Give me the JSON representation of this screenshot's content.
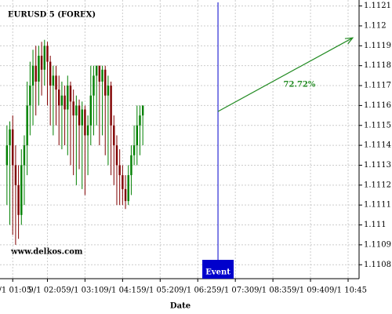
{
  "chart_data": {
    "type": "candlestick",
    "title": "EURUSD 5 (FOREX)",
    "watermark": "www.delkos.com",
    "x_label": "Date",
    "x": [
      55,
      60,
      65,
      70,
      75,
      80,
      85,
      90,
      95,
      100,
      105,
      110,
      115,
      120,
      125,
      130,
      135,
      140,
      145,
      150,
      155,
      160,
      165,
      170,
      175,
      180,
      185,
      190,
      195,
      200,
      205,
      210,
      215,
      220,
      225,
      230,
      235,
      240,
      245,
      250,
      255,
      260,
      265,
      270,
      275,
      280,
      285,
      290
    ],
    "open": [
      1.1113,
      1.1114,
      1.11148,
      1.1113,
      1.1112,
      1.11105,
      1.1113,
      1.1114,
      1.1116,
      1.1117,
      1.1118,
      1.11172,
      1.11185,
      1.11178,
      1.1119,
      1.11182,
      1.1117,
      1.11175,
      1.11168,
      1.1116,
      1.11165,
      1.11158,
      1.1117,
      1.11162,
      1.11155,
      1.1116,
      1.1115,
      1.11158,
      1.11145,
      1.1115,
      1.11165,
      1.11175,
      1.1118,
      1.11172,
      1.11178,
      1.11165,
      1.1117,
      1.1115,
      1.1114,
      1.1113,
      1.11125,
      1.11118,
      1.11112,
      1.11125,
      1.11135,
      1.1114,
      1.1115,
      1.11155
    ],
    "high": [
      1.1115,
      1.11152,
      1.11155,
      1.1114,
      1.1113,
      1.11138,
      1.11145,
      1.11172,
      1.11182,
      1.11188,
      1.1119,
      1.1119,
      1.11192,
      1.11193,
      1.11192,
      1.11185,
      1.1118,
      1.1118,
      1.11175,
      1.11172,
      1.1117,
      1.11175,
      1.11172,
      1.11168,
      1.11165,
      1.11163,
      1.11162,
      1.1116,
      1.11155,
      1.1118,
      1.1118,
      1.1118,
      1.1118,
      1.1118,
      1.1118,
      1.11175,
      1.11172,
      1.11155,
      1.11145,
      1.11138,
      1.1113,
      1.11125,
      1.1113,
      1.1114,
      1.1115,
      1.1116,
      1.1116,
      1.1116
    ],
    "low": [
      1.1111,
      1.111,
      1.11095,
      1.1109,
      1.11093,
      1.111,
      1.1111,
      1.11125,
      1.11145,
      1.1115,
      1.11155,
      1.1116,
      1.11165,
      1.1117,
      1.1116,
      1.1115,
      1.11145,
      1.1115,
      1.1114,
      1.11138,
      1.1114,
      1.11135,
      1.1113,
      1.11125,
      1.1112,
      1.11128,
      1.11118,
      1.11115,
      1.11125,
      1.1114,
      1.11145,
      1.1115,
      1.1114,
      1.11145,
      1.11135,
      1.1113,
      1.11125,
      1.1112,
      1.1111,
      1.1111,
      1.1111,
      1.11108,
      1.1111,
      1.11115,
      1.1113,
      1.1113,
      1.11135,
      1.1114
    ],
    "close": [
      1.1114,
      1.11148,
      1.1113,
      1.1112,
      1.11105,
      1.1113,
      1.1114,
      1.1116,
      1.1117,
      1.1118,
      1.11172,
      1.11185,
      1.11178,
      1.1119,
      1.11182,
      1.1117,
      1.11175,
      1.11168,
      1.1116,
      1.11165,
      1.11158,
      1.1117,
      1.11162,
      1.11155,
      1.1116,
      1.1115,
      1.11158,
      1.11145,
      1.1115,
      1.11165,
      1.11175,
      1.1118,
      1.11172,
      1.11178,
      1.11165,
      1.1117,
      1.1115,
      1.1114,
      1.1113,
      1.11125,
      1.11118,
      1.11112,
      1.11125,
      1.11135,
      1.1114,
      1.1115,
      1.11155,
      1.1116
    ],
    "up_color": "#008000",
    "down_color": "#800000",
    "xlim": [
      43,
      664
    ],
    "ylim": [
      1.11073,
      1.11213
    ],
    "xticks": [
      {
        "value": 65,
        "label": "9/1 01:05"
      },
      {
        "value": 125,
        "label": "9/1 02:05"
      },
      {
        "value": 190,
        "label": "9/1 03:10"
      },
      {
        "value": 255,
        "label": "9/1 04:15"
      },
      {
        "value": 320,
        "label": "9/1 05:20"
      },
      {
        "value": 385,
        "label": "9/1 06:25"
      },
      {
        "value": 450,
        "label": "9/1 07:30"
      },
      {
        "value": 515,
        "label": "9/1 08:35"
      },
      {
        "value": 580,
        "label": "9/1 09:40"
      },
      {
        "value": 645,
        "label": "9/1 10:45"
      }
    ],
    "yticks": [
      1.1108,
      1.1109,
      1.111,
      1.1111,
      1.1112,
      1.1113,
      1.1114,
      1.1115,
      1.1116,
      1.1117,
      1.1118,
      1.1119,
      1.112,
      1.1121
    ],
    "grid": true,
    "event": {
      "label": "Event",
      "x": 420,
      "color": "#0000cc"
    },
    "arrow": {
      "x": [
        420,
        653
      ],
      "y": [
        1.11157,
        1.11194
      ],
      "label": "72.72%",
      "color": "#228b22"
    }
  }
}
